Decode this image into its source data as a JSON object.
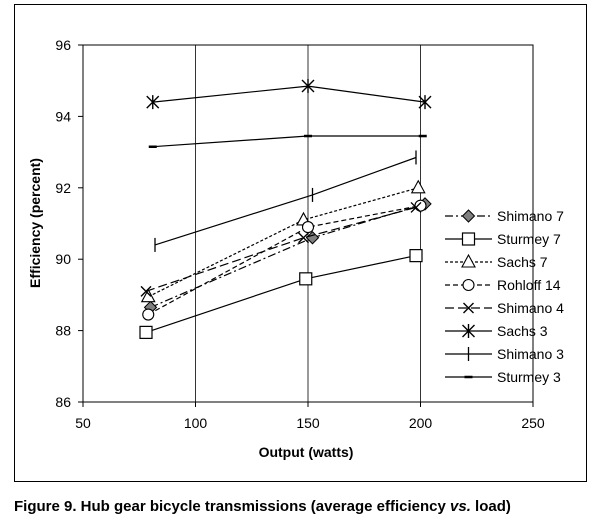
{
  "chart_data": {
    "type": "line",
    "xlabel": "Output (watts)",
    "ylabel": "Efficiency (percent)",
    "xlim": [
      50,
      250
    ],
    "ylim": [
      86,
      96
    ],
    "x_ticks": [
      "50",
      "100",
      "150",
      "200",
      "250"
    ],
    "y_ticks": [
      "86",
      "88",
      "90",
      "92",
      "94",
      "96"
    ],
    "grid": "vertical",
    "legend_position": "right",
    "series": [
      {
        "name": "Shimano 7",
        "marker": "diamond-filled",
        "dash": "8,3,2,3",
        "points": [
          [
            80,
            88.65
          ],
          [
            152,
            90.6
          ],
          [
            202,
            91.55
          ]
        ]
      },
      {
        "name": "Sturmey 7",
        "marker": "square-open",
        "dash": "none",
        "points": [
          [
            78,
            87.95
          ],
          [
            149,
            89.45
          ],
          [
            198,
            90.1
          ]
        ]
      },
      {
        "name": "Sachs 7",
        "marker": "triangle-open",
        "dash": "3,2",
        "points": [
          [
            79,
            88.95
          ],
          [
            148,
            91.1
          ],
          [
            199,
            92.0
          ]
        ]
      },
      {
        "name": "Rohloff 14",
        "marker": "circle-open",
        "dash": "5,3",
        "points": [
          [
            79,
            88.45
          ],
          [
            150,
            90.9
          ],
          [
            200,
            91.5
          ]
        ]
      },
      {
        "name": "Shimano 4",
        "marker": "x",
        "dash": "9,4",
        "points": [
          [
            78,
            89.1
          ],
          [
            148,
            90.6
          ],
          [
            198,
            91.45
          ]
        ]
      },
      {
        "name": "Sachs 3",
        "marker": "star",
        "dash": "none",
        "points": [
          [
            81,
            94.4
          ],
          [
            150,
            94.85
          ],
          [
            202,
            94.4
          ]
        ]
      },
      {
        "name": "Shimano 3",
        "marker": "plus",
        "dash": "none",
        "points": [
          [
            82,
            90.4
          ],
          [
            152,
            91.8
          ],
          [
            198,
            92.85
          ]
        ]
      },
      {
        "name": "Sturmey 3",
        "marker": "dash",
        "dash": "none",
        "points": [
          [
            81,
            93.15
          ],
          [
            150,
            93.45
          ],
          [
            201,
            93.45
          ]
        ]
      }
    ]
  },
  "caption": {
    "prefix": "Figure 9. Hub gear bicycle transmissions (average efficiency ",
    "emphasis": "vs.",
    "suffix": " load)"
  }
}
